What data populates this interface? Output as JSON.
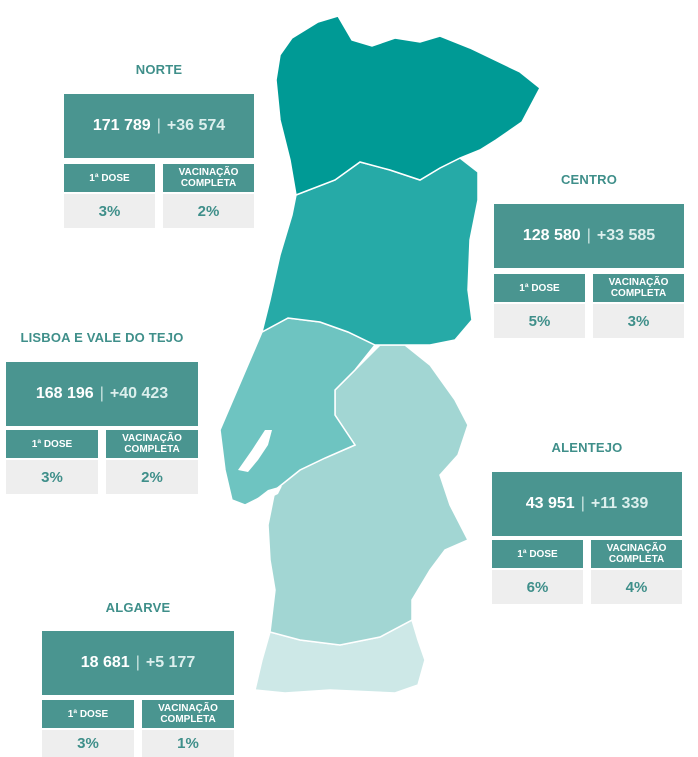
{
  "regions": {
    "norte": {
      "name": "NORTE",
      "value": "171 789",
      "change": "+36 574",
      "dose1_label": "1ª DOSE",
      "complete_label": "VACINAÇÃO COMPLETA",
      "dose1_pct": "3%",
      "complete_pct": "2%",
      "color": "#009a95"
    },
    "centro": {
      "name": "CENTRO",
      "value": "128 580",
      "change": "+33 585",
      "dose1_label": "1ª DOSE",
      "complete_label": "VACINAÇÃO COMPLETA",
      "dose1_pct": "5%",
      "complete_pct": "3%",
      "color": "#26aaa7"
    },
    "lisboa": {
      "name": "LISBOA E VALE DO TEJO",
      "value": "168 196",
      "change": "+40 423",
      "dose1_label": "1ª DOSE",
      "complete_label": "VACINAÇÃO COMPLETA",
      "dose1_pct": "3%",
      "complete_pct": "2%",
      "color": "#6ec4c1"
    },
    "alentejo": {
      "name": "ALENTEJO",
      "value": "43 951",
      "change": "+11 339",
      "dose1_label": "1ª DOSE",
      "complete_label": "VACINAÇÃO COMPLETA",
      "dose1_pct": "6%",
      "complete_pct": "4%",
      "color": "#a2d6d3"
    },
    "algarve": {
      "name": "ALGARVE",
      "value": "18 681",
      "change": "+5 177",
      "dose1_label": "1ª DOSE",
      "complete_label": "VACINAÇÃO COMPLETA",
      "dose1_pct": "3%",
      "complete_pct": "1%",
      "color": "#cde8e7"
    }
  },
  "box_color": "#4a9590",
  "accent_text": "#3f8f8a",
  "footnote": ""
}
